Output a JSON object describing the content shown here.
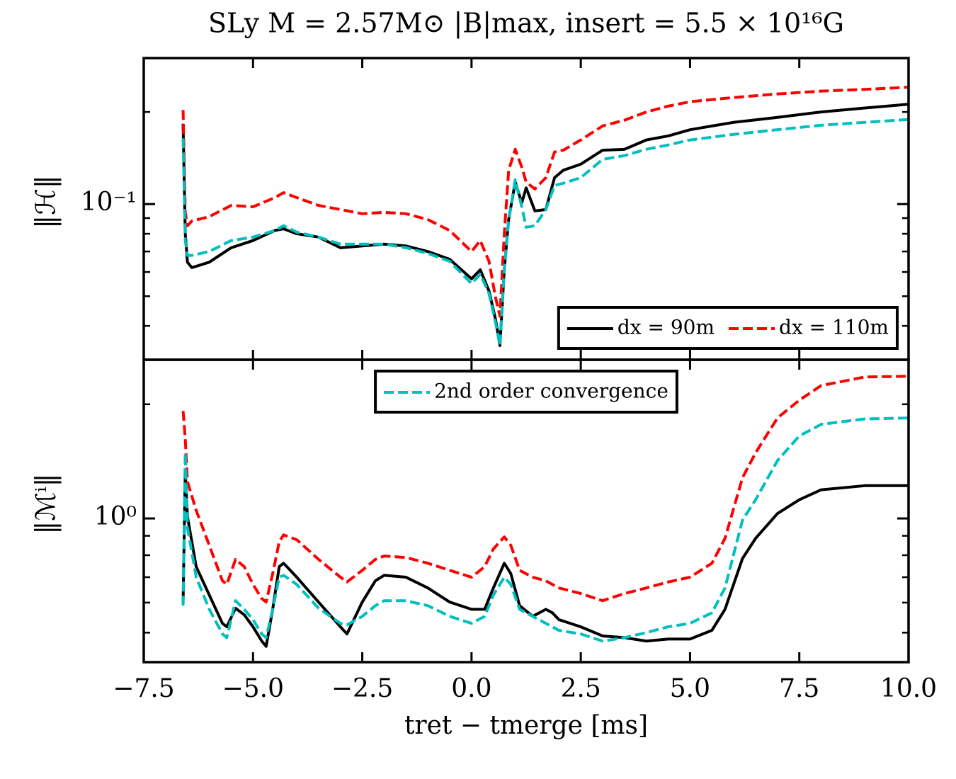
{
  "chart_data": [
    {
      "type": "line",
      "title": "SLy M = 2.57M⊙ |B|max, insert = 5.5 × 10¹⁶G",
      "ylabel": "‖ℋ‖",
      "log_y": true,
      "xlim": [
        -7.5,
        10
      ],
      "xticks": [
        -7.5,
        -5,
        -2.5,
        0,
        2.5,
        5,
        7.5,
        10
      ],
      "ylim": [
        0.031,
        0.3
      ],
      "yticks": [
        {
          "value": 0.1,
          "label": "10⁻¹"
        }
      ],
      "yminor": [
        0.04,
        0.05,
        0.06,
        0.07,
        0.08,
        0.09,
        0.2,
        0.3
      ],
      "legend": "lower right",
      "x": [
        -6.6,
        -6.55,
        -6.5,
        -6.4,
        -6.0,
        -5.5,
        -5.0,
        -4.5,
        -4.3,
        -4.0,
        -3.5,
        -3.0,
        -2.5,
        -2.0,
        -1.5,
        -1.0,
        -0.5,
        0.0,
        0.2,
        0.4,
        0.55,
        0.65,
        0.75,
        0.85,
        1.0,
        1.15,
        1.25,
        1.45,
        1.7,
        1.9,
        2.1,
        2.5,
        3.0,
        3.5,
        4.0,
        4.5,
        5.0,
        6.0,
        7.0,
        8.0,
        9.0,
        10.0
      ],
      "series": [
        {
          "name": "dx = 90m",
          "color": "#000000",
          "dash": false,
          "values": [
            0.183,
            0.08,
            0.0646,
            0.062,
            0.0646,
            0.072,
            0.076,
            0.082,
            0.083,
            0.08,
            0.078,
            0.072,
            0.073,
            0.074,
            0.073,
            0.07,
            0.066,
            0.057,
            0.061,
            0.052,
            0.042,
            0.0345,
            0.061,
            0.089,
            0.118,
            0.101,
            0.113,
            0.095,
            0.096,
            0.122,
            0.129,
            0.135,
            0.15,
            0.151,
            0.162,
            0.167,
            0.175,
            0.185,
            0.192,
            0.2,
            0.206,
            0.212
          ]
        },
        {
          "name": "dx = 110m",
          "color": "#ff0000",
          "dash": true,
          "values": [
            0.203,
            0.094,
            0.085,
            0.088,
            0.091,
            0.099,
            0.098,
            0.105,
            0.109,
            0.105,
            0.099,
            0.096,
            0.093,
            0.094,
            0.093,
            0.089,
            0.082,
            0.07,
            0.076,
            0.065,
            0.0495,
            0.043,
            0.08,
            0.129,
            0.151,
            0.132,
            0.118,
            0.112,
            0.122,
            0.148,
            0.15,
            0.162,
            0.18,
            0.188,
            0.2,
            0.209,
            0.216,
            0.223,
            0.229,
            0.234,
            0.237,
            0.241
          ]
        },
        {
          "color": "#00bfbf",
          "dash": true,
          "values": [
            0.164,
            0.076,
            0.068,
            0.068,
            0.07,
            0.076,
            0.078,
            0.082,
            0.085,
            0.081,
            0.078,
            0.074,
            0.074,
            0.074,
            0.072,
            0.069,
            0.065,
            0.055,
            0.059,
            0.051,
            0.041,
            0.0345,
            0.061,
            0.089,
            0.12,
            0.098,
            0.084,
            0.085,
            0.096,
            0.115,
            0.117,
            0.122,
            0.14,
            0.144,
            0.151,
            0.156,
            0.162,
            0.169,
            0.175,
            0.181,
            0.185,
            0.189
          ]
        }
      ]
    },
    {
      "type": "line",
      "ylabel": "‖ℳⁱ‖",
      "xlabel": "tret − tmerge [ms]",
      "log_y": true,
      "xlim": [
        -7.5,
        10
      ],
      "xticks": [
        {
          "value": -7.5,
          "label": "−7.5"
        },
        {
          "value": -5,
          "label": "−5.0"
        },
        {
          "value": -2.5,
          "label": "−2.5"
        },
        {
          "value": 0,
          "label": "0.0"
        },
        {
          "value": 2.5,
          "label": "2.5"
        },
        {
          "value": 5,
          "label": "5.0"
        },
        {
          "value": 7.5,
          "label": "7.5"
        },
        {
          "value": 10,
          "label": "10.0"
        }
      ],
      "ylim": [
        0.418,
        2.62
      ],
      "yticks": [
        {
          "value": 1,
          "label": "10⁰"
        }
      ],
      "yminor": [
        0.5,
        0.6,
        0.7,
        0.8,
        0.9,
        2
      ],
      "legend": "upper center",
      "x": [
        -6.6,
        -6.55,
        -6.5,
        -6.3,
        -6.0,
        -5.7,
        -5.6,
        -5.4,
        -5.2,
        -5.0,
        -4.8,
        -4.7,
        -4.55,
        -4.4,
        -4.3,
        -4.0,
        -3.5,
        -3.0,
        -2.85,
        -2.5,
        -2.2,
        -2.0,
        -1.5,
        -1.0,
        -0.5,
        0.0,
        0.3,
        0.5,
        0.75,
        0.9,
        1.1,
        1.4,
        1.7,
        1.85,
        2.0,
        2.5,
        3.0,
        3.5,
        4.0,
        4.5,
        5.0,
        5.5,
        5.8,
        6.2,
        6.5,
        7.0,
        7.5,
        8.0,
        9.0,
        10.0
      ],
      "series": [
        {
          "color": "#000000",
          "dash": false,
          "values": [
            0.6,
            1.33,
            1.01,
            0.746,
            0.628,
            0.529,
            0.518,
            0.58,
            0.557,
            0.518,
            0.475,
            0.46,
            0.576,
            0.746,
            0.762,
            0.7,
            0.602,
            0.518,
            0.496,
            0.602,
            0.685,
            0.708,
            0.7,
            0.656,
            0.602,
            0.576,
            0.576,
            0.656,
            0.762,
            0.715,
            0.589,
            0.552,
            0.576,
            0.564,
            0.541,
            0.518,
            0.49,
            0.485,
            0.475,
            0.481,
            0.481,
            0.507,
            0.576,
            0.784,
            0.886,
            1.03,
            1.12,
            1.19,
            1.22,
            1.22
          ]
        },
        {
          "color": "#ff0000",
          "dash": true,
          "values": [
            1.92,
            1.62,
            1.25,
            1.05,
            0.849,
            0.685,
            0.67,
            0.78,
            0.746,
            0.67,
            0.615,
            0.602,
            0.715,
            0.868,
            0.905,
            0.879,
            0.78,
            0.7,
            0.68,
            0.73,
            0.78,
            0.796,
            0.789,
            0.762,
            0.73,
            0.7,
            0.746,
            0.831,
            0.894,
            0.849,
            0.73,
            0.7,
            0.685,
            0.67,
            0.656,
            0.634,
            0.607,
            0.634,
            0.656,
            0.68,
            0.7,
            0.762,
            0.886,
            1.28,
            1.49,
            1.84,
            2.05,
            2.24,
            2.36,
            2.37
          ]
        },
        {
          "name": "2nd order convergence",
          "color": "#00bfbf",
          "dash": true,
          "values": [
            0.589,
            1.49,
            0.946,
            0.7,
            0.576,
            0.496,
            0.485,
            0.607,
            0.576,
            0.541,
            0.496,
            0.485,
            0.576,
            0.7,
            0.708,
            0.67,
            0.58,
            0.529,
            0.524,
            0.552,
            0.589,
            0.607,
            0.607,
            0.589,
            0.552,
            0.529,
            0.552,
            0.628,
            0.7,
            0.67,
            0.576,
            0.552,
            0.529,
            0.518,
            0.507,
            0.496,
            0.475,
            0.485,
            0.5,
            0.518,
            0.529,
            0.564,
            0.656,
            0.99,
            1.12,
            1.42,
            1.65,
            1.77,
            1.83,
            1.84
          ]
        }
      ]
    }
  ]
}
